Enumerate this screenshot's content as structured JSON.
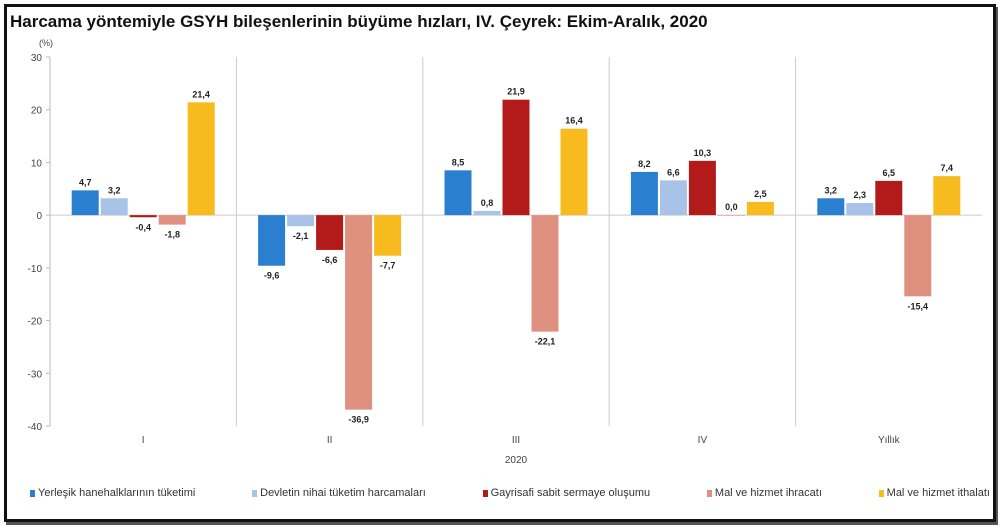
{
  "chart_data": {
    "type": "bar",
    "title": "Harcama yöntemiyle GSYH bileşenlerinin büyüme hızları, IV. Çeyrek: Ekim-Aralık, 2020",
    "ylabel": "(%)",
    "xlabel": "2020",
    "ylim": [
      -40,
      30
    ],
    "yticks": [
      30,
      20,
      10,
      0,
      -10,
      -20,
      -30,
      -40
    ],
    "grid": false,
    "legend_position": "bottom",
    "categories": [
      "I",
      "II",
      "III",
      "IV",
      "Yıllık"
    ],
    "series": [
      {
        "name": "Yerleşik hanehalklarının tüketimi",
        "color": "#2a7fcf",
        "values": [
          4.7,
          -9.6,
          8.5,
          8.2,
          3.2
        ]
      },
      {
        "name": "Devletin nihai tüketim harcamaları",
        "color": "#a9c3e8",
        "values": [
          3.2,
          -2.1,
          0.8,
          6.6,
          2.3
        ]
      },
      {
        "name": "Gayrisafi sabit sermaye oluşumu",
        "color": "#b31b1b",
        "values": [
          -0.4,
          -6.6,
          21.9,
          10.3,
          6.5
        ]
      },
      {
        "name": "Mal ve hizmet ihracatı",
        "color": "#e0907f",
        "values": [
          -1.8,
          -36.9,
          -22.1,
          0.0,
          -15.4
        ]
      },
      {
        "name": "Mal ve hizmet ithalatı",
        "color": "#f7bb1f",
        "values": [
          21.4,
          -7.7,
          16.4,
          2.5,
          7.4
        ]
      }
    ]
  }
}
